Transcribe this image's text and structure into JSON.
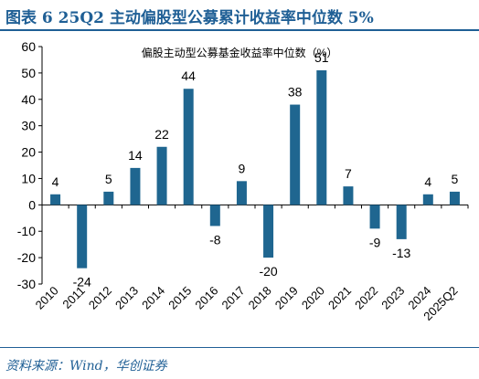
{
  "figure_title": "图表 6   25Q2 主动偏股型公募累计收益率中位数 5%",
  "source": "资料来源：Wind，华创证券",
  "colors": {
    "bar": "#1f6690",
    "title": "#1f5f95",
    "axis": "#000000"
  },
  "chart_data": {
    "type": "bar",
    "title": "偏股主动型公募基金收益率中位数（%）",
    "xlabel": "",
    "ylabel": "",
    "categories": [
      "2010",
      "2011",
      "2012",
      "2013",
      "2014",
      "2015",
      "2016",
      "2017",
      "2018",
      "2019",
      "2020",
      "2021",
      "2022",
      "2023",
      "2024",
      "2025Q2"
    ],
    "values": [
      4,
      -24,
      5,
      14,
      22,
      44,
      -8,
      9,
      -20,
      38,
      51,
      7,
      -9,
      -13,
      4,
      5
    ],
    "data_labels": [
      "4",
      "-24",
      "5",
      "14",
      "22",
      "44",
      "-8",
      "9",
      "-20",
      "38",
      "51",
      "7",
      "-9",
      "-13",
      "4",
      "5"
    ],
    "ylim": [
      -30,
      60
    ],
    "yticks": [
      -30,
      -20,
      -10,
      0,
      10,
      20,
      30,
      40,
      50,
      60
    ],
    "grid": false,
    "legend": "none"
  }
}
